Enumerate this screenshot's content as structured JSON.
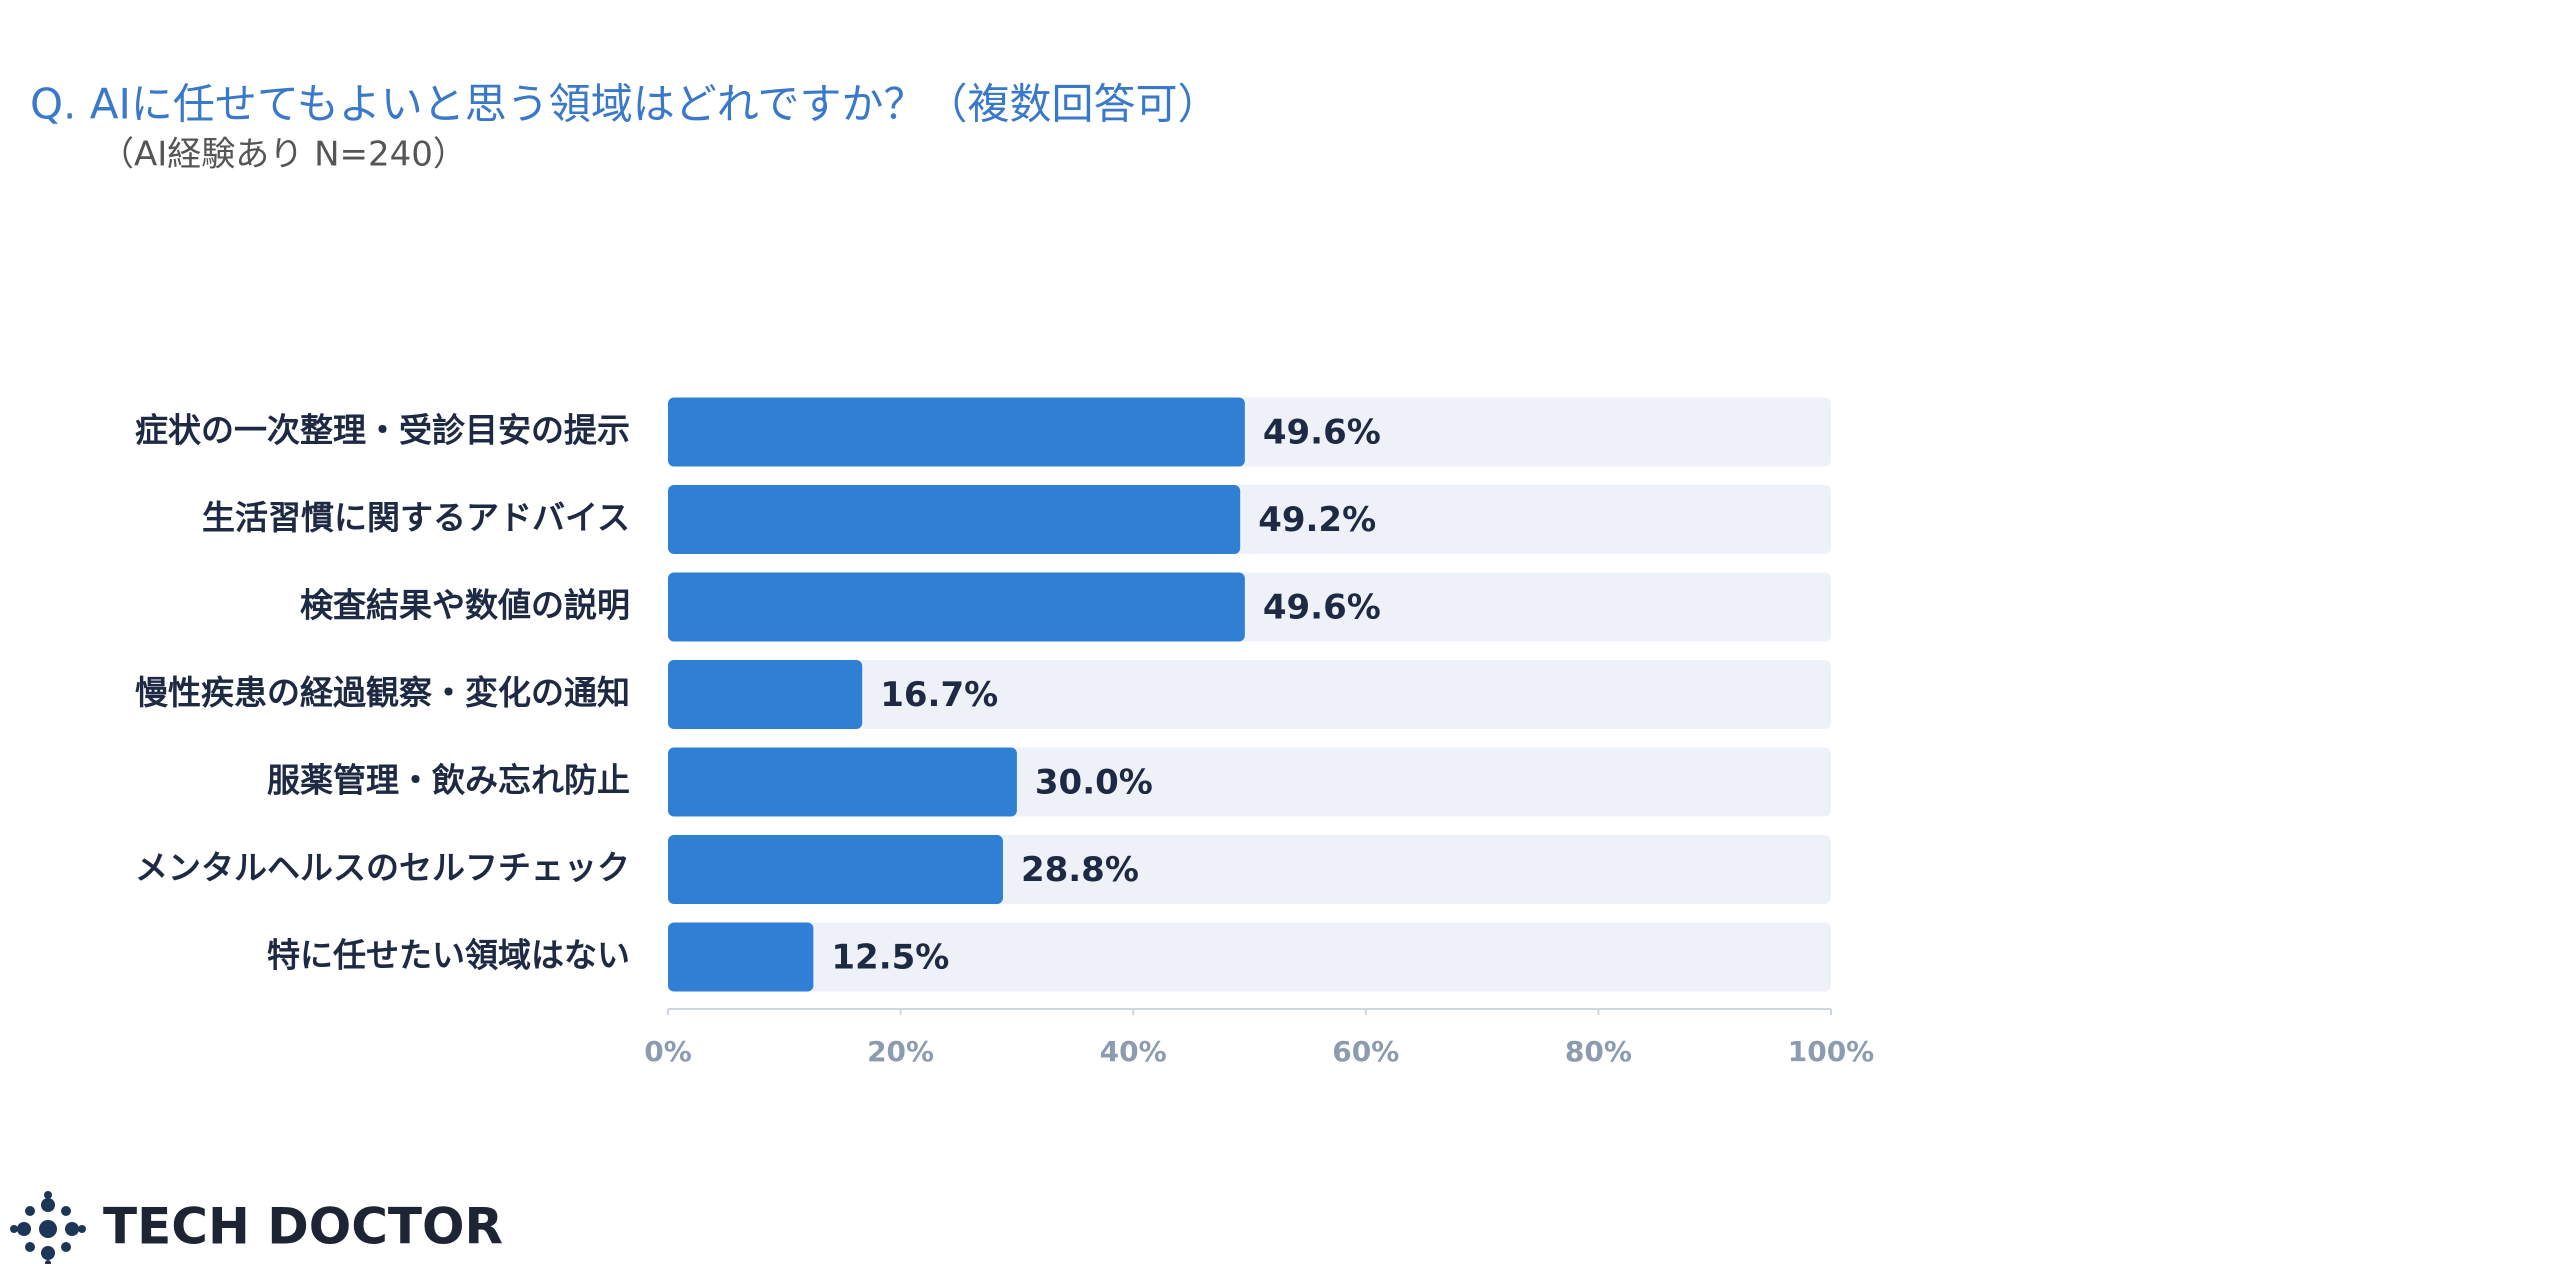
{
  "chart_data": {
    "type": "barh",
    "title": "Q.  AIに任せてもよいと思う領域はどれですか？（複数回答可）",
    "subtitle": "（AI経験あり N=240）",
    "brand": "TECH DOCTOR",
    "categories": [
      "症状の一次整理・受診目安の提示",
      "生活習慣に関するアドバイス",
      "検査結果や数値の説明",
      "慢性疾患の経過観察・変化の通知",
      "服薬管理・飲み忘れ防止",
      "メンタルヘルスのセルフチェック",
      "特に任せたい領域はない"
    ],
    "values": [
      49.6,
      49.2,
      49.6,
      16.7,
      30.0,
      28.8,
      12.5
    ],
    "value_labels": [
      "49.6%",
      "49.2%",
      "49.6%",
      "16.7%",
      "30.0%",
      "28.8%",
      "12.5%"
    ],
    "color": "#2f7fd4",
    "track_color": "#eef2f8",
    "xlim": [
      0,
      100
    ],
    "xticks": [
      {
        "value": 0,
        "label": "0%"
      },
      {
        "value": 20,
        "label": "20%"
      },
      {
        "value": 40,
        "label": "40%"
      },
      {
        "value": 60,
        "label": "60%"
      },
      {
        "value": 80,
        "label": "80%"
      },
      {
        "value": 100,
        "label": "100%"
      }
    ]
  }
}
